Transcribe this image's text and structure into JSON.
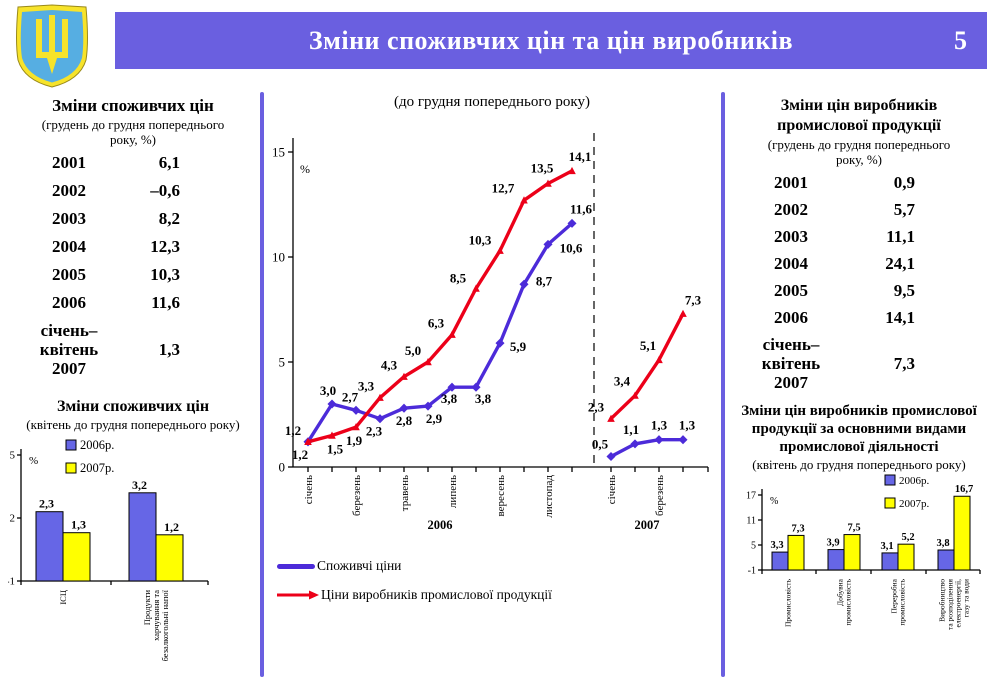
{
  "header": {
    "title": "Зміни споживчих цін та цін виробників",
    "page_number": "5"
  },
  "colors": {
    "header_bar": "#6A5FE0",
    "panel_divider": "#6A5FE0",
    "consumer_line": "#4C2BD9",
    "producer_line": "#EC0019",
    "bar_2006": "#6666E6",
    "bar_2007": "#FFFF00",
    "emblem_shield": "#56AEE2",
    "emblem_trident": "#F7E32A"
  },
  "left_panel": {
    "title": "Зміни споживчих цін",
    "subtitle": "(грудень до грудня попереднього року, %)",
    "rows": [
      {
        "label": [
          "2001"
        ],
        "value": "6,1"
      },
      {
        "label": [
          "2002"
        ],
        "value": "–0,6"
      },
      {
        "label": [
          "2003"
        ],
        "value": "8,2"
      },
      {
        "label": [
          "2004"
        ],
        "value": "12,3"
      },
      {
        "label": [
          "2005"
        ],
        "value": "10,3"
      },
      {
        "label": [
          "2006"
        ],
        "value": "11,6"
      },
      {
        "label": [
          "січень–",
          "квітень",
          "2007"
        ],
        "value": "1,3"
      }
    ]
  },
  "right_panel": {
    "title": "Зміни цін виробників промислової продукції",
    "subtitle": "(грудень до грудня попереднього року, %)",
    "rows": [
      {
        "label": [
          "2001"
        ],
        "value": "0,9"
      },
      {
        "label": [
          "2002"
        ],
        "value": "5,7"
      },
      {
        "label": [
          "2003"
        ],
        "value": "11,1"
      },
      {
        "label": [
          "2004"
        ],
        "value": "24,1"
      },
      {
        "label": [
          "2005"
        ],
        "value": "9,5"
      },
      {
        "label": [
          "2006"
        ],
        "value": "14,1"
      },
      {
        "label": [
          "січень–",
          "квітень",
          "2007"
        ],
        "value": "7,3"
      }
    ]
  },
  "chart_data": [
    {
      "id": "price-changes-monthly",
      "type": "line",
      "title": "(до грудня попереднього року)",
      "ylabel": "%",
      "ylim": [
        0,
        15
      ],
      "y_ticks": [
        0,
        5,
        10,
        15
      ],
      "x_axis": {
        "years": [
          "2006",
          "2007"
        ],
        "months_2006": 12,
        "months_2007": 4,
        "tick_labels_2006": [
          "січень",
          "березень",
          "травень",
          "липень",
          "вересень",
          "листопад"
        ],
        "tick_labels_2007": [
          "січень",
          "березень"
        ]
      },
      "series": [
        {
          "name": "Споживчі ціни",
          "color": "#4C2BD9",
          "values_2006": [
            1.2,
            3.0,
            2.7,
            2.3,
            2.8,
            2.9,
            3.8,
            3.8,
            5.9,
            8.7,
            10.6,
            11.6
          ],
          "values_2007": [
            0.5,
            1.1,
            1.3,
            1.3
          ]
        },
        {
          "name": "Ціни виробників промислової продукції",
          "color": "#EC0019",
          "values_2006": [
            1.2,
            1.5,
            1.9,
            3.3,
            4.3,
            5.0,
            6.3,
            8.5,
            10.3,
            12.7,
            13.5,
            14.1
          ],
          "values_2007": [
            2.3,
            3.4,
            5.1,
            7.3
          ]
        }
      ],
      "legend_position": "below"
    },
    {
      "id": "consumer-prices-by-group",
      "type": "bar",
      "title": "Зміни споживчих цін",
      "subtitle": "(квітень до грудня попереднього року)",
      "ylabel": "%",
      "ylim": [
        -1,
        5
      ],
      "y_ticks": [
        5,
        2,
        -1
      ],
      "categories": [
        [
          "ІСЦ"
        ],
        [
          "Продукти",
          "харчування та",
          "безалкогольні напої"
        ]
      ],
      "series": [
        {
          "name": "2006р.",
          "color": "#6666E6",
          "values": [
            2.3,
            3.2
          ]
        },
        {
          "name": "2007р.",
          "color": "#FFFF00",
          "values": [
            1.3,
            1.2
          ]
        }
      ],
      "legend_position": "top"
    },
    {
      "id": "producer-prices-by-activity",
      "type": "bar",
      "title": "Зміни цін виробників промислової продукції за основними видами промислової діяльності",
      "subtitle": "(квітень до грудня попереднього року)",
      "ylabel": "%",
      "ylim": [
        -1,
        17
      ],
      "y_ticks": [
        17,
        11,
        5,
        -1
      ],
      "categories": [
        [
          "Промисловість"
        ],
        [
          "Добувна",
          "промисловість"
        ],
        [
          "Переробна",
          "промисловість"
        ],
        [
          "Виробництво",
          "та розподілення",
          "електроенергії,",
          "газу та води"
        ]
      ],
      "series": [
        {
          "name": "2006р.",
          "color": "#6666E6",
          "values": [
            3.3,
            3.9,
            3.1,
            3.8
          ]
        },
        {
          "name": "2007р.",
          "color": "#FFFF00",
          "values": [
            7.3,
            7.5,
            5.2,
            16.7
          ]
        }
      ],
      "legend_position": "top-right"
    }
  ]
}
